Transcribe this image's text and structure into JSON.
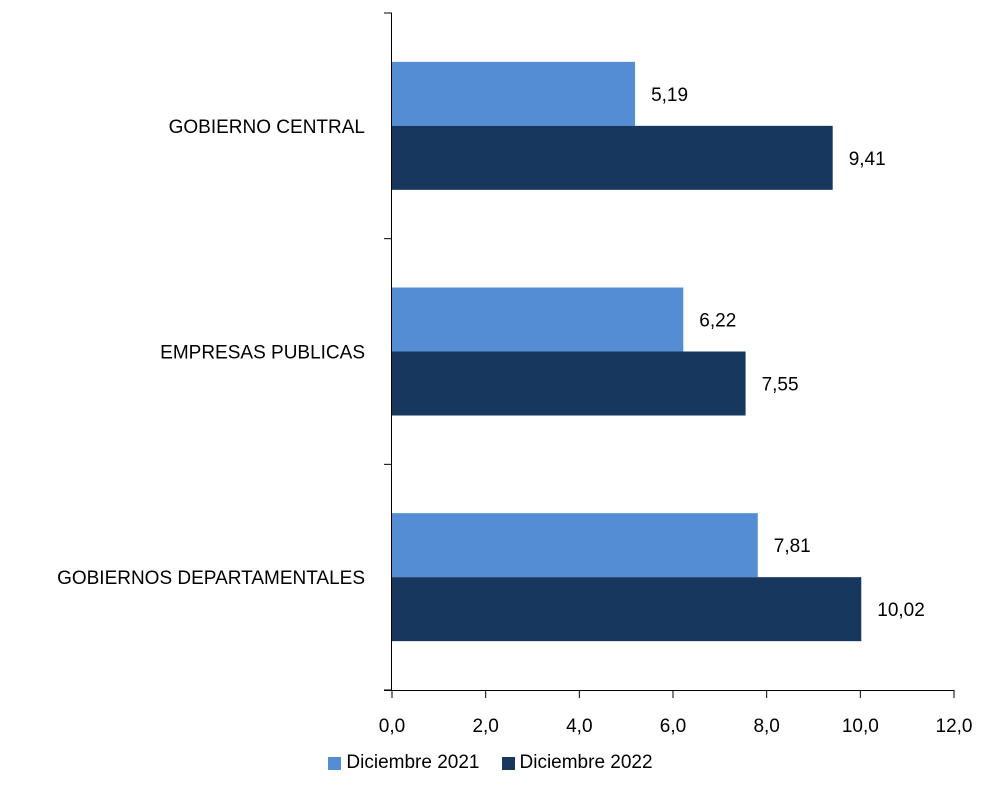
{
  "chart_data": {
    "type": "bar",
    "orientation": "horizontal",
    "categories": [
      "GOBIERNO CENTRAL",
      "EMPRESAS PUBLICAS",
      "GOBIERNOS DEPARTAMENTALES"
    ],
    "series": [
      {
        "name": "Diciembre 2021",
        "color": "#548DD4",
        "values": [
          5.19,
          6.22,
          7.81
        ],
        "labels": [
          "5,19",
          "6,22",
          "7,81"
        ]
      },
      {
        "name": "Diciembre 2022",
        "color": "#17375E",
        "values": [
          9.41,
          7.55,
          10.02
        ],
        "labels": [
          "9,41",
          "7,55",
          "10,02"
        ]
      }
    ],
    "xlim": [
      0,
      12
    ],
    "x_ticks": [
      0,
      2,
      4,
      6,
      8,
      10,
      12
    ],
    "x_tick_labels": [
      "0,0",
      "2,0",
      "4,0",
      "6,0",
      "8,0",
      "10,0",
      "12,0"
    ],
    "grid": false,
    "legend_position": "bottom"
  }
}
